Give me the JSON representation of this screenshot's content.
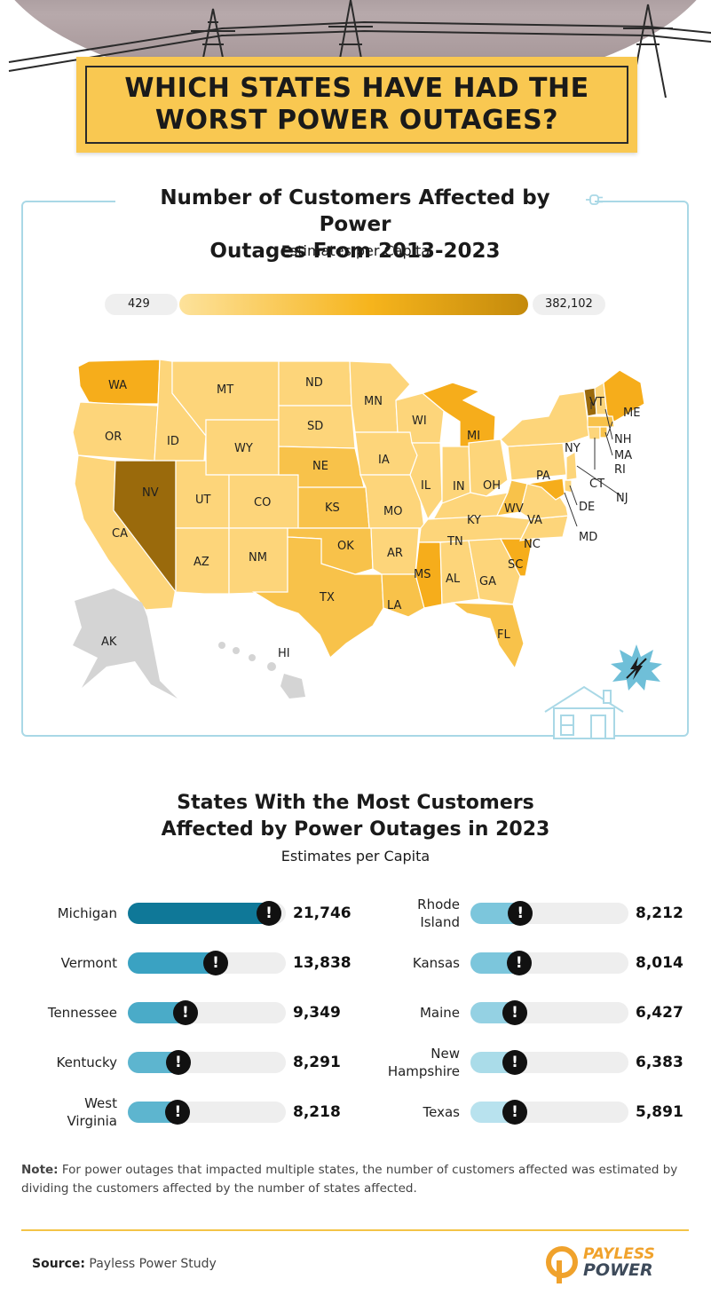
{
  "header": {
    "title_line1": "WHICH STATES HAVE HAD THE",
    "title_line2": "WORST POWER OUTAGES?"
  },
  "map": {
    "title_line1": "Number of Customers Affected by Power",
    "title_line2": "Outages  From 2013-2023",
    "subtitle": "Estimates per Capita",
    "legend_min": "429",
    "legend_max": "382,102",
    "colors": {
      "light": "#fdd57a",
      "mid": "#f8c24a",
      "orange": "#f6ad1b",
      "dark": "#9a6a0c",
      "nodata": "#d4d4d4"
    },
    "labels": [
      "WA",
      "MT",
      "ND",
      "MN",
      "WI",
      "MI",
      "VT",
      "ME",
      "NH",
      "MA",
      "RI",
      "CT",
      "NJ",
      "DE",
      "MD",
      "NY",
      "PA",
      "OR",
      "ID",
      "WY",
      "SD",
      "NE",
      "IA",
      "IL",
      "IN",
      "OH",
      "NV",
      "UT",
      "CO",
      "KS",
      "MO",
      "KY",
      "WV",
      "VA",
      "CA",
      "AZ",
      "NM",
      "OK",
      "AR",
      "TN",
      "NC",
      "SC",
      "MS",
      "AL",
      "GA",
      "TX",
      "LA",
      "FL",
      "AK",
      "HI"
    ]
  },
  "chart_data": {
    "type": "bar",
    "title": "States With the Most Customers Affected by Power Outages in 2023",
    "subtitle": "Estimates per Capita",
    "categories": [
      "Michigan",
      "Vermont",
      "Tennessee",
      "Kentucky",
      "West Virginia",
      "Rhode Island",
      "Kansas",
      "Maine",
      "New Hampshire",
      "Texas"
    ],
    "values": [
      21746,
      13838,
      9349,
      8291,
      8218,
      8212,
      8014,
      6427,
      6383,
      5891
    ],
    "value_labels": [
      "21,746",
      "13,838",
      "9,349",
      "8,291",
      "8,218",
      "8,212",
      "8,014",
      "6,427",
      "6,383",
      "5,891"
    ],
    "colors": [
      "#0f7898",
      "#3aa2c2",
      "#4aabc8",
      "#5db5cf",
      "#5db5cf",
      "#7cc6dc",
      "#7cc6dc",
      "#94d1e3",
      "#aadce9",
      "#b8e2ee"
    ],
    "marker": "!"
  },
  "bar_labels": {
    "michigan": "Michigan",
    "vermont": "Vermont",
    "tennessee": "Tennessee",
    "kentucky": "Kentucky",
    "wv1": "West",
    "wv2": "Virginia",
    "ri1": "Rhode",
    "ri2": "Island",
    "kansas": "Kansas",
    "maine": "Maine",
    "nh1": "New",
    "nh2": "Hampshire",
    "texas": "Texas"
  },
  "note": {
    "prefix": "Note:",
    "text": " For power outages that impacted multiple states, the number of customers affected was estimated by dividing the customers affected by the number of states affected."
  },
  "source": {
    "prefix": "Source:",
    "text": " Payless Power Study"
  },
  "logo": {
    "line1": "PAYLESS",
    "line2": "POWER",
    "mark": "®"
  }
}
